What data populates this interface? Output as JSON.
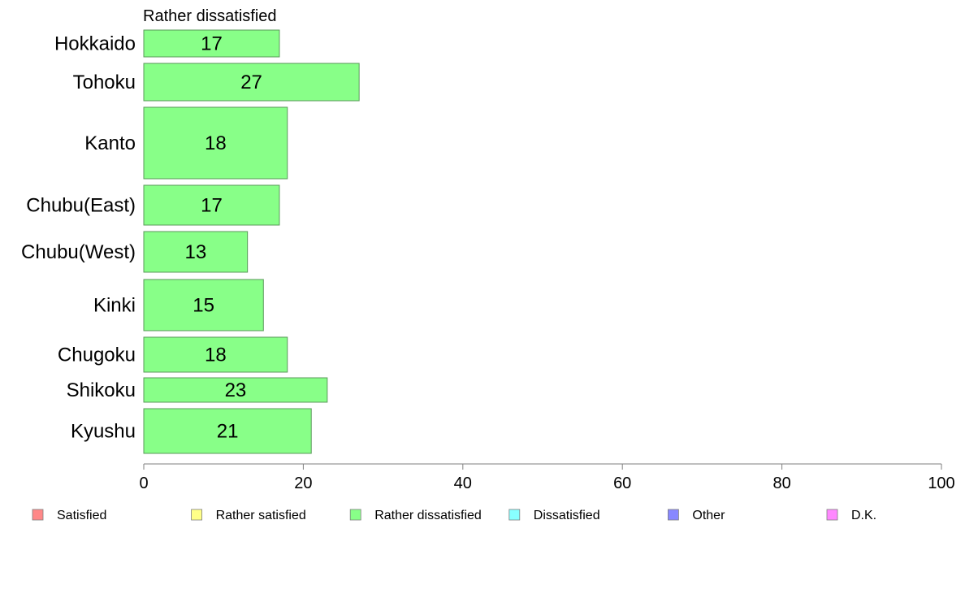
{
  "chart_data": {
    "type": "bar",
    "orientation": "horizontal",
    "title": "Rather dissatisfied",
    "categories": [
      "Hokkaido",
      "Tohoku",
      "Kanto",
      "Chubu(East)",
      "Chubu(West)",
      "Kinki",
      "Chugoku",
      "Shikoku",
      "Kyushu"
    ],
    "values": [
      17,
      27,
      18,
      17,
      13,
      15,
      18,
      23,
      21
    ],
    "value_labels": [
      "17",
      "27",
      "18",
      "17",
      "13",
      "15",
      "18",
      "23",
      "21"
    ],
    "xlim": [
      0,
      100
    ],
    "x_ticks": [
      0,
      20,
      40,
      60,
      80,
      100
    ],
    "x_tick_labels": [
      "0",
      "20",
      "40",
      "60",
      "80",
      "100"
    ],
    "bar_color": "#88ff88",
    "bar_edge_color": "#5a9a5a",
    "grid": false,
    "legend_position": "bottom",
    "legend": [
      {
        "label": "Satisfied",
        "color": "#ff8888"
      },
      {
        "label": "Rather satisfied",
        "color": "#ffff88"
      },
      {
        "label": "Rather dissatisfied",
        "color": "#88ff88"
      },
      {
        "label": "Dissatisfied",
        "color": "#88ffff"
      },
      {
        "label": "Other",
        "color": "#8888ff"
      },
      {
        "label": "D.K.",
        "color": "#ff88ff"
      }
    ]
  }
}
